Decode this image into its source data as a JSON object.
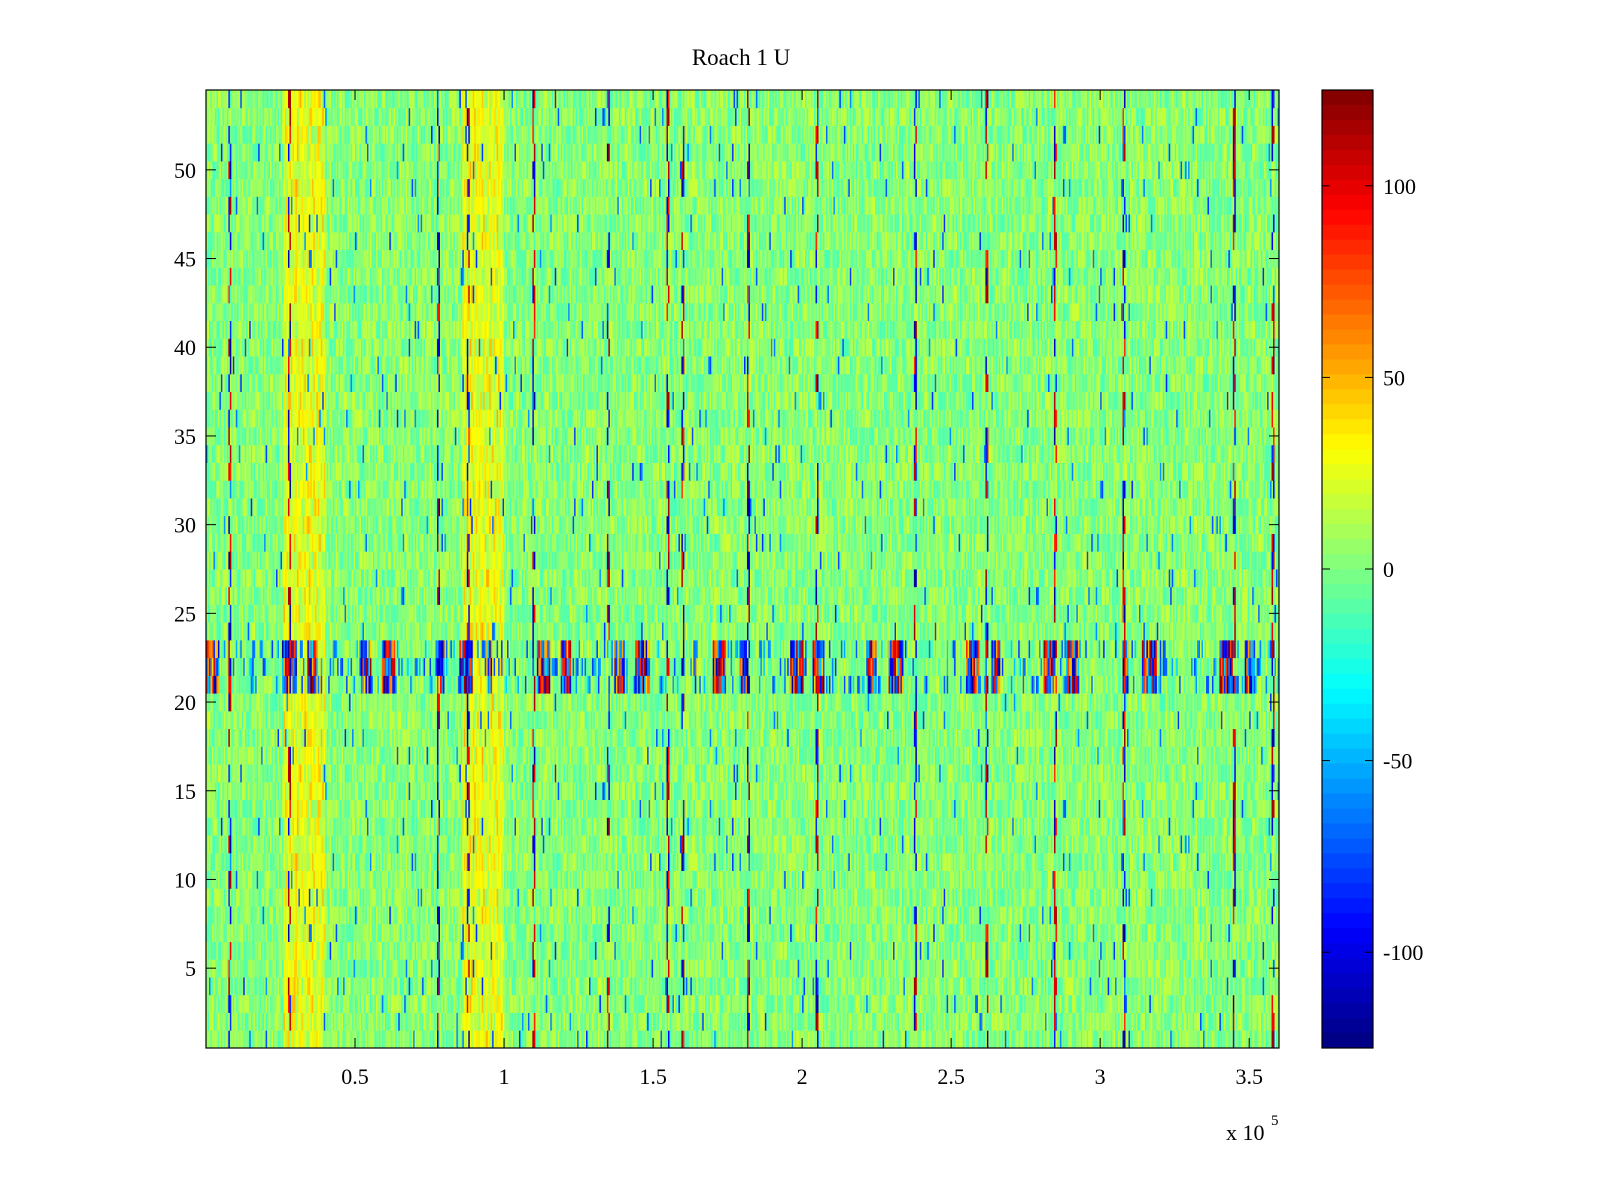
{
  "chart_data": {
    "type": "heatmap",
    "title": "Roach 1 U",
    "xlabel": "",
    "ylabel": "",
    "x_exponent_label": {
      "base": "x 10",
      "exponent": "5"
    },
    "xlim": [
      0,
      360000
    ],
    "ylim": [
      0.5,
      54.5
    ],
    "x_ticks": [
      {
        "value": 50000,
        "label": "0.5"
      },
      {
        "value": 100000,
        "label": "1"
      },
      {
        "value": 150000,
        "label": "1.5"
      },
      {
        "value": 200000,
        "label": "2"
      },
      {
        "value": 250000,
        "label": "2.5"
      },
      {
        "value": 300000,
        "label": "3"
      },
      {
        "value": 350000,
        "label": "3.5"
      }
    ],
    "y_ticks": [
      {
        "value": 5,
        "label": "5"
      },
      {
        "value": 10,
        "label": "10"
      },
      {
        "value": 15,
        "label": "15"
      },
      {
        "value": 20,
        "label": "20"
      },
      {
        "value": 25,
        "label": "25"
      },
      {
        "value": 30,
        "label": "30"
      },
      {
        "value": 35,
        "label": "35"
      },
      {
        "value": 40,
        "label": "40"
      },
      {
        "value": 45,
        "label": "45"
      },
      {
        "value": 50,
        "label": "50"
      }
    ],
    "rows": 54,
    "columns_approx": 720,
    "colormap": "jet",
    "colorbar": {
      "range": [
        -125,
        125
      ],
      "ticks": [
        {
          "value": 100,
          "label": "100"
        },
        {
          "value": 50,
          "label": "50"
        },
        {
          "value": 0,
          "label": "0"
        },
        {
          "value": -50,
          "label": "-50"
        },
        {
          "value": -100,
          "label": "-100"
        }
      ]
    },
    "background_value_range": [
      -15,
      20
    ],
    "features": {
      "high_activity_rows": [
        21,
        22,
        23
      ],
      "warm_column_bands_x": [
        33000,
        93000
      ],
      "spike_columns_x": [
        8000,
        28000,
        78000,
        88000,
        110000,
        135000,
        155000,
        160000,
        182000,
        205000,
        238000,
        262000,
        285000,
        308000,
        345000,
        358000
      ]
    },
    "grid": false,
    "legend": "none"
  }
}
